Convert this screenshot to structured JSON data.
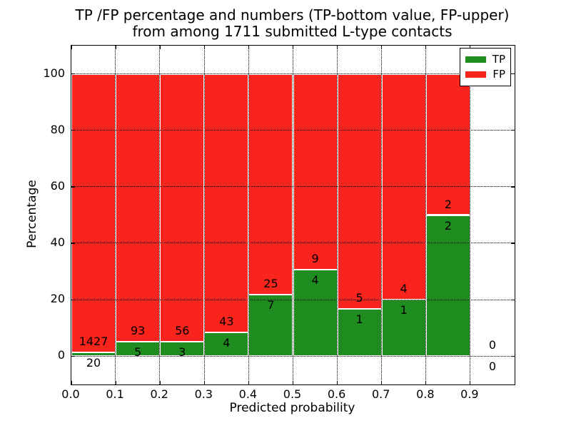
{
  "title": {
    "line1": "TP /FP percentage and numbers (TP-bottom value, FP-upper)",
    "line2": "from among 1711 submitted L-type contacts"
  },
  "chart_data": {
    "type": "bar",
    "stacked": true,
    "normalized": "percent",
    "title": "TP /FP percentage and numbers (TP-bottom value, FP-upper)\nfrom among 1711 submitted L-type contacts",
    "xlabel": "Predicted probability",
    "ylabel": "Percentage",
    "total_contacts": 1711,
    "xlim": [
      0.0,
      1.0
    ],
    "ylim": [
      -10,
      110
    ],
    "xtick_values": [
      0.0,
      0.1,
      0.2,
      0.3,
      0.4,
      0.5,
      0.6,
      0.7,
      0.8,
      0.9
    ],
    "xtick_labels": [
      "0.0",
      "0.1",
      "0.2",
      "0.3",
      "0.4",
      "0.5",
      "0.6",
      "0.7",
      "0.8",
      "0.9"
    ],
    "ytick_values": [
      0,
      20,
      40,
      60,
      80,
      100
    ],
    "ytick_labels": [
      "0",
      "20",
      "40",
      "60",
      "80",
      "100"
    ],
    "grid": "dotted",
    "colors": {
      "tp": "#1f8c1f",
      "fp": "#f9241b",
      "bar_edge": "#ffffff"
    },
    "legend": {
      "position": "upper-right",
      "entries": [
        {
          "label": "TP",
          "color": "#1f8c1f"
        },
        {
          "label": "FP",
          "color": "#f9241b"
        }
      ]
    },
    "series": [
      {
        "name": "TP",
        "values_pct": [
          1.38,
          5.1,
          5.08,
          8.51,
          21.88,
          30.77,
          16.67,
          20.0,
          50.0,
          0
        ]
      },
      {
        "name": "FP",
        "values_pct": [
          98.62,
          94.9,
          94.92,
          91.49,
          78.12,
          69.23,
          83.33,
          80.0,
          50.0,
          0
        ]
      }
    ],
    "bins": [
      {
        "range": [
          0.0,
          0.1
        ],
        "tp": 20,
        "fp": 1427,
        "tp_pct": 1.382
      },
      {
        "range": [
          0.1,
          0.2
        ],
        "tp": 5,
        "fp": 93,
        "tp_pct": 5.102
      },
      {
        "range": [
          0.2,
          0.3
        ],
        "tp": 3,
        "fp": 56,
        "tp_pct": 5.085
      },
      {
        "range": [
          0.3,
          0.4
        ],
        "tp": 4,
        "fp": 43,
        "tp_pct": 8.511
      },
      {
        "range": [
          0.4,
          0.5
        ],
        "tp": 7,
        "fp": 25,
        "tp_pct": 21.875
      },
      {
        "range": [
          0.5,
          0.6
        ],
        "tp": 4,
        "fp": 9,
        "tp_pct": 30.769
      },
      {
        "range": [
          0.6,
          0.7
        ],
        "tp": 1,
        "fp": 5,
        "tp_pct": 16.667
      },
      {
        "range": [
          0.7,
          0.8
        ],
        "tp": 1,
        "fp": 4,
        "tp_pct": 20.0
      },
      {
        "range": [
          0.8,
          0.9
        ],
        "tp": 2,
        "fp": 2,
        "tp_pct": 50.0
      },
      {
        "range": [
          0.9,
          1.0
        ],
        "tp": 0,
        "fp": 0,
        "tp_pct": 0
      }
    ]
  }
}
